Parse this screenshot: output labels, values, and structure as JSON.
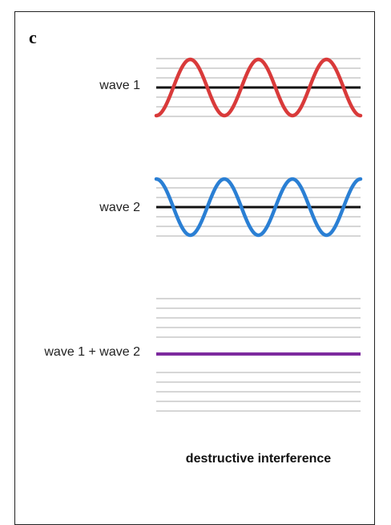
{
  "panel_label": "c",
  "waves": {
    "wave1": {
      "label": "wave 1",
      "color": "#d93a3a",
      "phase": "crest-first",
      "cycles": 3
    },
    "wave2": {
      "label": "wave 2",
      "color": "#2a7fd4",
      "phase": "trough-first",
      "cycles": 3
    },
    "sum": {
      "label": "wave 1 + wave 2",
      "color": "#7d2a9e",
      "amplitude": 0
    }
  },
  "axis_color": "#111111",
  "grid_color": "#c8c8c8",
  "caption": "destructive interference"
}
